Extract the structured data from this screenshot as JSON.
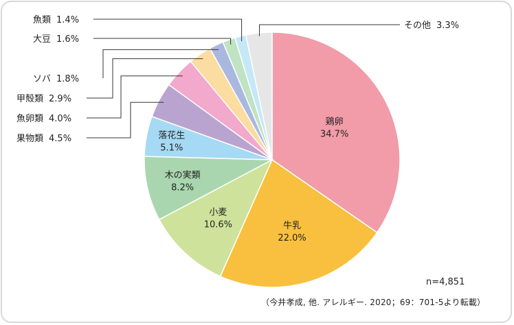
{
  "chart_data": {
    "type": "pie",
    "title": "",
    "start": "top, clockwise",
    "slices": [
      {
        "label": "鶏卵",
        "value": 34.7,
        "display": "34.7%",
        "color": "#f19ca8",
        "label_pos": "inside"
      },
      {
        "label": "牛乳",
        "value": 22.0,
        "display": "22.0%",
        "color": "#f8c03e",
        "label_pos": "inside"
      },
      {
        "label": "小麦",
        "value": 10.6,
        "display": "10.6%",
        "color": "#cfe29c",
        "label_pos": "inside"
      },
      {
        "label": "木の実類",
        "value": 8.2,
        "display": "8.2%",
        "color": "#a9d6ae",
        "label_pos": "inside"
      },
      {
        "label": "落花生",
        "value": 5.1,
        "display": "5.1%",
        "color": "#a6d9f3",
        "label_pos": "inside"
      },
      {
        "label": "果物類",
        "value": 4.5,
        "display": "4.5%",
        "color": "#b9a4cf",
        "label_pos": "outside"
      },
      {
        "label": "魚卵類",
        "value": 4.0,
        "display": "4.0%",
        "color": "#f2a9cb",
        "label_pos": "outside"
      },
      {
        "label": "甲殻類",
        "value": 2.9,
        "display": "2.9%",
        "color": "#fbdca1",
        "label_pos": "outside"
      },
      {
        "label": "ソバ",
        "value": 1.8,
        "display": "1.8%",
        "color": "#aab8e0",
        "label_pos": "outside"
      },
      {
        "label": "大豆",
        "value": 1.6,
        "display": "1.6%",
        "color": "#bfe3c3",
        "label_pos": "outside"
      },
      {
        "label": "魚類",
        "value": 1.4,
        "display": "1.4%",
        "color": "#c6e7f6",
        "label_pos": "outside"
      },
      {
        "label": "その他",
        "value": 3.3,
        "display": "3.3%",
        "color": "#e6e6e6",
        "label_pos": "outside"
      }
    ]
  },
  "annotations": {
    "sample_size": "n=4,851",
    "source": "（今井孝成, 他. アレルギー. 2020；69：701-5より転載）"
  },
  "colors": {
    "frame": "#d8d8d8",
    "leader_line": "#333333",
    "text": "#222222"
  }
}
